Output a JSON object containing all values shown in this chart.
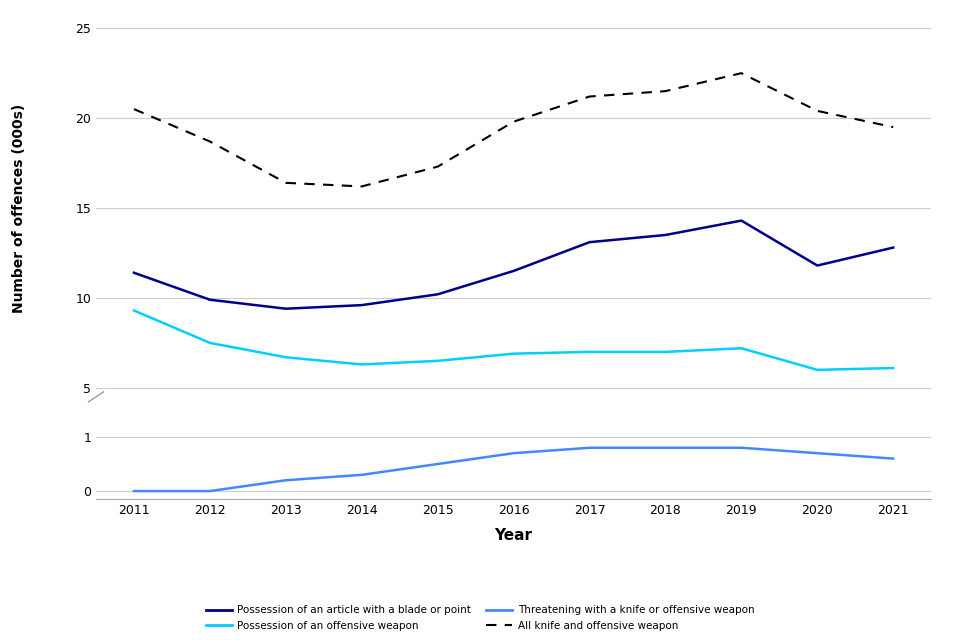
{
  "years": [
    2011,
    2012,
    2013,
    2014,
    2015,
    2016,
    2017,
    2018,
    2019,
    2020,
    2021
  ],
  "possession_blade": [
    11.4,
    9.9,
    9.4,
    9.6,
    10.2,
    11.5,
    13.1,
    13.5,
    14.3,
    11.8,
    12.8
  ],
  "possession_offensive": [
    9.3,
    7.5,
    6.7,
    6.3,
    6.5,
    6.9,
    7.0,
    7.0,
    7.2,
    6.0,
    6.1
  ],
  "threatening": [
    0.0,
    0.0,
    0.2,
    0.3,
    0.5,
    0.7,
    0.8,
    0.8,
    0.8,
    0.7,
    0.6
  ],
  "all_knife": [
    20.5,
    18.7,
    16.4,
    16.2,
    17.3,
    19.8,
    21.2,
    21.5,
    22.5,
    20.4,
    19.5
  ],
  "upper_ylim": [
    4.5,
    25.5
  ],
  "upper_yticks": [
    5,
    10,
    15,
    20,
    25
  ],
  "lower_ylim": [
    -0.15,
    1.4
  ],
  "lower_yticks": [
    0,
    1
  ],
  "color_blade": "#00008B",
  "color_offensive": "#00CFFF",
  "color_threatening": "#4488FF",
  "color_all": "#000000",
  "xlabel": "Year",
  "ylabel": "Number of offences (000s)",
  "legend_blade": "Possession of an article with a blade or point",
  "legend_offensive": "Possession of an offensive weapon",
  "legend_threatening": "Threatening with a knife or offensive weapon",
  "legend_all": "All knife and offensive weapon",
  "background_color": "#ffffff",
  "grid_color": "#cccccc"
}
